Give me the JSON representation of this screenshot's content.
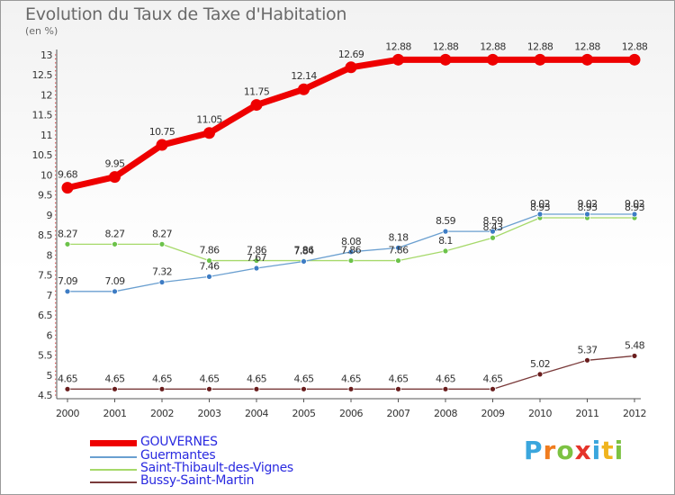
{
  "title": "Evolution du Taux de Taxe d'Habitation",
  "unit_label": "(en %)",
  "logo_text": "Proxiti",
  "logo_letters": [
    {
      "ch": "P",
      "color": "#3aa6dd"
    },
    {
      "ch": "r",
      "color": "#f07c1e"
    },
    {
      "ch": "o",
      "color": "#7cc242"
    },
    {
      "ch": "x",
      "color": "#e5332a"
    },
    {
      "ch": "i",
      "color": "#3aa6dd"
    },
    {
      "ch": "t",
      "color": "#f0b41e"
    },
    {
      "ch": "i",
      "color": "#7cc242"
    }
  ],
  "chart_data": {
    "type": "line",
    "x": [
      "2000",
      "2001",
      "2002",
      "2003",
      "2004",
      "2005",
      "2006",
      "2007",
      "2008",
      "2009",
      "2010",
      "2011",
      "2012"
    ],
    "ylim": [
      4.5,
      13
    ],
    "yticks": [
      "4.5",
      "5",
      "5.5",
      "6",
      "6.5",
      "7",
      "7.5",
      "8",
      "8.5",
      "9",
      "9.5",
      "10",
      "10.5",
      "11",
      "11.5",
      "12",
      "12.5",
      "13"
    ],
    "grid": false,
    "legend_position": "bottom-left",
    "series": [
      {
        "name": "GOUVERNES",
        "color": "#ee0000",
        "legend_color": "#2a2ae0",
        "values": [
          9.68,
          9.95,
          10.75,
          11.05,
          11.75,
          12.14,
          12.69,
          12.88,
          12.88,
          12.88,
          12.88,
          12.88,
          12.88
        ],
        "labels": [
          "9.68",
          "9.95",
          "10.75",
          "11.05",
          "11.75",
          "12.14",
          "12.69",
          "12.88",
          "12.88",
          "12.88",
          "12.88",
          "12.88",
          "12.88"
        ]
      },
      {
        "name": "Guermantes",
        "color": "#6a9fd0",
        "marker": "#3d7cc4",
        "legend_color": "#2a2ae0",
        "values": [
          7.09,
          7.09,
          7.32,
          7.46,
          7.67,
          7.84,
          8.08,
          8.18,
          8.59,
          8.59,
          9.02,
          9.02,
          9.02
        ],
        "labels": [
          "7.09",
          "7.09",
          "7.32",
          "7.46",
          "7.67",
          "7.84",
          "8.08",
          "8.18",
          "8.59",
          "8.59",
          "9.02",
          "9.02",
          "9.02"
        ]
      },
      {
        "name": "Saint-Thibault-des-Vignes",
        "color": "#a6d96a",
        "marker": "#6cc24a",
        "legend_color": "#2a2ae0",
        "values": [
          8.27,
          8.27,
          8.27,
          7.86,
          7.86,
          7.86,
          7.86,
          7.86,
          8.1,
          8.43,
          8.93,
          8.93,
          8.93
        ],
        "labels": [
          "8.27",
          "8.27",
          "8.27",
          "7.86",
          "7.86",
          "7.86",
          "7.86",
          "7.86",
          "8.1",
          "8.43",
          "8.93",
          "8.93",
          "8.93"
        ]
      },
      {
        "name": "Bussy-Saint-Martin",
        "color": "#7a3a3a",
        "marker": "#6a1e1e",
        "legend_color": "#2a2ae0",
        "values": [
          4.65,
          4.65,
          4.65,
          4.65,
          4.65,
          4.65,
          4.65,
          4.65,
          4.65,
          4.65,
          5.02,
          5.37,
          5.48
        ],
        "labels": [
          "4.65",
          "4.65",
          "4.65",
          "4.65",
          "4.65",
          "4.65",
          "4.65",
          "4.65",
          "4.65",
          "4.65",
          "5.02",
          "5.37",
          "5.48"
        ]
      }
    ]
  }
}
